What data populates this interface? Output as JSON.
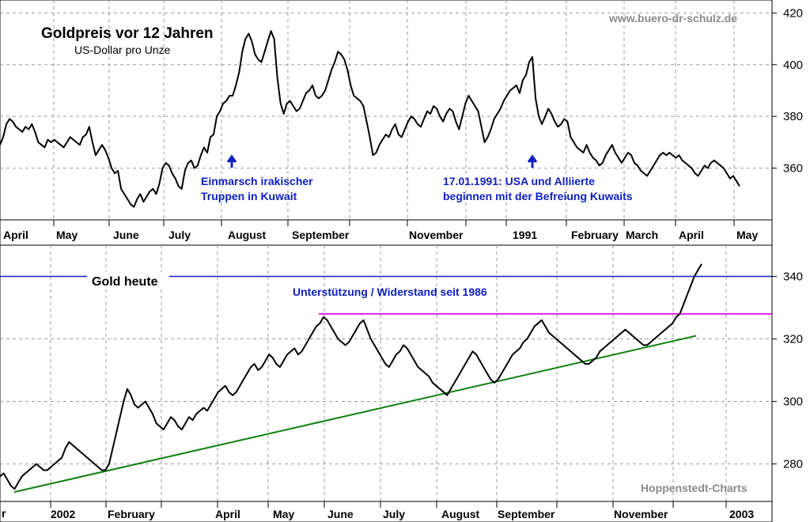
{
  "header": {
    "title": "Goldpreis vor 12 Jahren",
    "subtitle": "US-Dollar pro Unze",
    "website": "www.buero-dr-schulz.de",
    "credit": "Hoppenstedt-Charts"
  },
  "colors": {
    "price_line": "#000000",
    "gridline": "#9a9a9a",
    "support_line": "#1020c0",
    "resistance_line": "#e020e0",
    "trend_line": "#108010",
    "annotation_text": "#1020c0"
  },
  "chart_data": [
    {
      "type": "line",
      "title": "Goldpreis vor 12 Jahren",
      "subtitle": "US-Dollar pro Unze",
      "x_labels": [
        "April",
        "May",
        "June",
        "July",
        "August",
        "September",
        "November",
        "1991",
        "February",
        "March",
        "April",
        "May"
      ],
      "ylim": [
        340,
        425
      ],
      "y_ticks": [
        360,
        380,
        400,
        420
      ],
      "grid": true,
      "series": [
        {
          "values": [
            369,
            372,
            377,
            379,
            378,
            376,
            375,
            374,
            376,
            375,
            377,
            374,
            370,
            369,
            368,
            371,
            370,
            371,
            370,
            369,
            368,
            370,
            372,
            371,
            370,
            369,
            372,
            373,
            376,
            370,
            365,
            367,
            369,
            367,
            364,
            360,
            358,
            359,
            352,
            350,
            348,
            346,
            345,
            348,
            350,
            347,
            349,
            351,
            352,
            350,
            354,
            360,
            362,
            361,
            358,
            356,
            353,
            352,
            359,
            362,
            363,
            360,
            361,
            365,
            368,
            366,
            372,
            373,
            380,
            382,
            385,
            386,
            388,
            388,
            392,
            397,
            405,
            410,
            412,
            409,
            404,
            402,
            401,
            405,
            409,
            413,
            410,
            395,
            385,
            381,
            385,
            386,
            384,
            382,
            383,
            386,
            389,
            390,
            392,
            388,
            387,
            388,
            390,
            394,
            398,
            401,
            405,
            404,
            402,
            398,
            392,
            388,
            387,
            386,
            384,
            378,
            372,
            365,
            366,
            369,
            371,
            373,
            372,
            375,
            377,
            373,
            372,
            375,
            378,
            380,
            379,
            377,
            376,
            379,
            382,
            381,
            384,
            383,
            380,
            378,
            381,
            383,
            382,
            378,
            375,
            380,
            385,
            388,
            386,
            384,
            382,
            376,
            370,
            372,
            375,
            379,
            381,
            383,
            386,
            388,
            390,
            391,
            392,
            389,
            394,
            396,
            401,
            403,
            387,
            380,
            377,
            380,
            383,
            381,
            378,
            376,
            377,
            379,
            378,
            372,
            370,
            368,
            367,
            366,
            369,
            366,
            364,
            363,
            361,
            362,
            365,
            367,
            369,
            366,
            364,
            362,
            364,
            366,
            365,
            362,
            361,
            359,
            358,
            357,
            359,
            361,
            363,
            365,
            366,
            365,
            366,
            365,
            364,
            365,
            363,
            362,
            361,
            360,
            358,
            357,
            359,
            361,
            360,
            362,
            363,
            362,
            361,
            360,
            358,
            356,
            357,
            355,
            353
          ]
        }
      ]
    },
    {
      "type": "line",
      "x_labels": [
        "2002",
        "February",
        "April",
        "May",
        "June",
        "July",
        "August",
        "September",
        "November",
        "2003"
      ],
      "ylim": [
        268,
        350
      ],
      "y_ticks": [
        280,
        300,
        320,
        340
      ],
      "grid": true,
      "series": [
        {
          "values": [
            276,
            277,
            275,
            273,
            272,
            274,
            276,
            277,
            278,
            279,
            280,
            279,
            278,
            278,
            279,
            280,
            281,
            282,
            285,
            287,
            286,
            285,
            284,
            283,
            282,
            281,
            280,
            279,
            278,
            278,
            280,
            285,
            290,
            295,
            300,
            304,
            302,
            299,
            298,
            299,
            300,
            298,
            296,
            293,
            292,
            291,
            293,
            295,
            294,
            292,
            291,
            293,
            295,
            294,
            296,
            297,
            298,
            297,
            299,
            301,
            303,
            304,
            305,
            303,
            302,
            303,
            305,
            307,
            309,
            311,
            312,
            310,
            311,
            313,
            315,
            314,
            312,
            311,
            313,
            315,
            316,
            317,
            315,
            316,
            318,
            320,
            322,
            324,
            325,
            327,
            326,
            324,
            322,
            320,
            319,
            318,
            319,
            321,
            323,
            325,
            326,
            323,
            320,
            318,
            316,
            314,
            312,
            311,
            313,
            315,
            316,
            318,
            317,
            315,
            313,
            311,
            310,
            309,
            308,
            306,
            305,
            304,
            303,
            302,
            304,
            306,
            308,
            310,
            312,
            314,
            316,
            315,
            313,
            311,
            309,
            307,
            306,
            307,
            309,
            311,
            313,
            315,
            316,
            317,
            319,
            320,
            322,
            324,
            325,
            326,
            324,
            322,
            321,
            320,
            319,
            318,
            317,
            316,
            315,
            314,
            313,
            312,
            312,
            313,
            314,
            316,
            317,
            318,
            319,
            320,
            321,
            322,
            323,
            322,
            321,
            320,
            319,
            318,
            318,
            319,
            320,
            321,
            322,
            323,
            324,
            325,
            327,
            328,
            331,
            334,
            337,
            340,
            342,
            344
          ]
        }
      ]
    }
  ],
  "annotations": {
    "event1_line1": "Einmarsch irakischer",
    "event1_line2": "Truppen in Kuwait",
    "event2_line1": "17.01.1991: USA und Alliierte",
    "event2_line2": "beginnen mit der Befreiung Kuwaits",
    "gold_today": "Gold heute",
    "support_label": "Unterstützung / Widerstand seit 1986",
    "bottom_left_fragment": "r"
  },
  "levels": {
    "support_resistance_value": 340,
    "resistance_value": 328,
    "trend_start": 271,
    "trend_end": 321
  }
}
